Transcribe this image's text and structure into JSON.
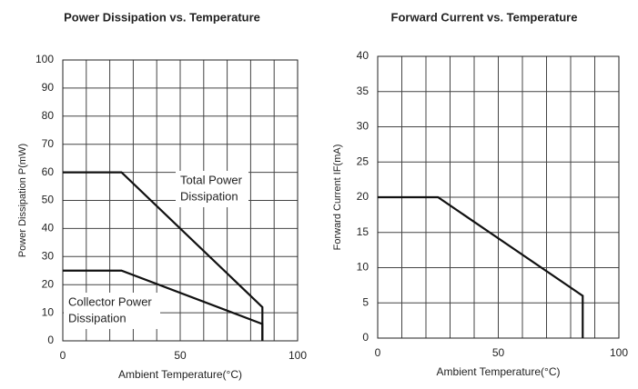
{
  "chart_data": [
    {
      "type": "line",
      "title": "Power Dissipation vs. Temperature",
      "x_label": "Ambient Temperature(°C)",
      "y_label": "Power Dissipation P(mW)",
      "xlim": [
        0,
        100
      ],
      "xticks": [
        0,
        50,
        100
      ],
      "xgrid": [
        0,
        10,
        20,
        30,
        40,
        50,
        60,
        70,
        80,
        90,
        100
      ],
      "ylim": [
        0,
        100
      ],
      "yticks": [
        0,
        10,
        20,
        30,
        40,
        50,
        60,
        70,
        80,
        90,
        100
      ],
      "grid": true,
      "series": [
        {
          "annotation": [
            "Total Power",
            "Dissipation"
          ],
          "color": "#111111",
          "x": [
            0,
            25,
            85,
            85
          ],
          "values": [
            60,
            60,
            12,
            0
          ]
        },
        {
          "annotation": [
            "Collector Power",
            "Dissipation"
          ],
          "color": "#111111",
          "x": [
            0,
            25,
            85,
            85
          ],
          "values": [
            25,
            25,
            6,
            0
          ]
        }
      ]
    },
    {
      "type": "line",
      "title": "Forward Current vs. Temperature",
      "x_label": "Ambient Temperature(°C)",
      "y_label": "Forward Current IF(mA)",
      "xlim": [
        0,
        100
      ],
      "xticks": [
        0,
        50,
        100
      ],
      "xgrid": [
        0,
        10,
        20,
        30,
        40,
        50,
        60,
        70,
        80,
        90,
        100
      ],
      "ylim": [
        0,
        40
      ],
      "yticks": [
        0,
        5,
        10,
        15,
        20,
        25,
        30,
        35,
        40
      ],
      "grid": true,
      "series": [
        {
          "color": "#111111",
          "x": [
            0,
            25,
            85,
            85
          ],
          "values": [
            20,
            20,
            6,
            0
          ]
        }
      ]
    }
  ]
}
